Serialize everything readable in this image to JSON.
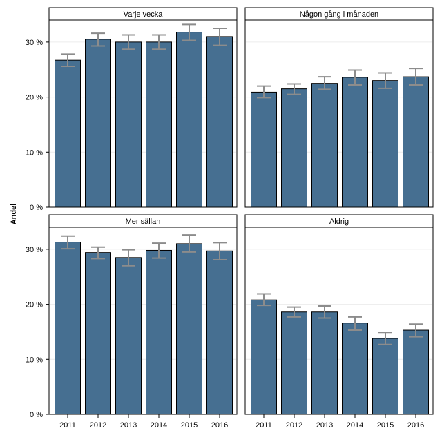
{
  "chart_data": {
    "type": "bar",
    "ylabel": "Andel",
    "ylim": [
      0,
      34
    ],
    "yticks": [
      0,
      10,
      20,
      30
    ],
    "ytick_labels": [
      "0 %",
      "10 %",
      "20 %",
      "30 %"
    ],
    "categories": [
      "2011",
      "2012",
      "2013",
      "2014",
      "2015",
      "2016"
    ],
    "bar_color": "#466F91",
    "errorbar_color": "#8C8C8C",
    "gridlines": "horizontal",
    "panels": [
      {
        "title": "Varje vecka",
        "values": [
          26.7,
          30.5,
          30.0,
          30.0,
          31.8,
          31.0
        ],
        "lower": [
          25.6,
          29.3,
          28.7,
          28.7,
          30.3,
          29.4
        ],
        "upper": [
          27.8,
          31.6,
          31.3,
          31.3,
          33.2,
          32.5
        ]
      },
      {
        "title": "Någon gång i månaden",
        "values": [
          20.9,
          21.5,
          22.5,
          23.6,
          23.0,
          23.7
        ],
        "lower": [
          19.9,
          20.5,
          21.4,
          22.2,
          21.6,
          22.2
        ],
        "upper": [
          22.0,
          22.4,
          23.7,
          24.9,
          24.4,
          25.2
        ]
      },
      {
        "title": "Mer sällan",
        "values": [
          31.3,
          29.4,
          28.5,
          29.8,
          31.0,
          29.7
        ],
        "lower": [
          30.1,
          28.3,
          27.0,
          28.4,
          29.5,
          28.1
        ],
        "upper": [
          32.4,
          30.4,
          29.9,
          31.1,
          32.6,
          31.2
        ]
      },
      {
        "title": "Aldrig",
        "values": [
          20.8,
          18.6,
          18.6,
          16.6,
          13.8,
          15.3
        ],
        "lower": [
          19.8,
          17.7,
          17.5,
          15.3,
          12.7,
          14.1
        ],
        "upper": [
          21.9,
          19.5,
          19.7,
          17.7,
          14.9,
          16.4
        ]
      }
    ]
  }
}
